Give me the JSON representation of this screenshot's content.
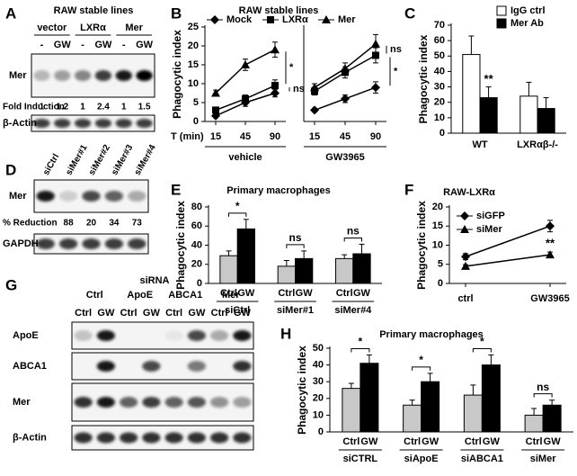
{
  "panel_letters": [
    "A",
    "B",
    "C",
    "D",
    "E",
    "F",
    "G",
    "H"
  ],
  "blot_a": {
    "title": "RAW stable lines",
    "groups": [
      "vector",
      "LXRα",
      "Mer"
    ],
    "lanes": [
      "-",
      "GW",
      "-",
      "GW",
      "-",
      "GW"
    ],
    "rows": [
      "Mer",
      "β-Actin"
    ],
    "fold_label": "Fold Induction",
    "fold": [
      1,
      1.2,
      1,
      2.4,
      1,
      1.5
    ]
  },
  "blot_d": {
    "lanes": [
      "siCtrl",
      "siMer#1",
      "siMer#2",
      "siMer#3",
      "siMer#4"
    ],
    "rows": [
      "Mer",
      "GAPDH"
    ],
    "reduction_label": "% Reduction",
    "reduction": [
      null,
      88,
      20,
      34,
      73
    ]
  },
  "blot_g": {
    "title": "siRNA",
    "groups": [
      "Ctrl",
      "ApoE",
      "ABCA1",
      "Mer"
    ],
    "lanes": [
      "Ctrl",
      "GW",
      "Ctrl",
      "GW",
      "Ctrl",
      "GW",
      "Ctrl",
      "GW"
    ],
    "rows": [
      "ApoE",
      "ABCA1",
      "Mer",
      "β-Actin"
    ]
  },
  "chart_data": [
    {
      "type": "line",
      "title": "RAW stable lines",
      "y_label": "Phagocytic index",
      "x_label": "T (min)",
      "ylim": [
        0,
        25
      ],
      "yticks": [
        0,
        5,
        10,
        15,
        20,
        25
      ],
      "legend_names": [
        "Mock",
        "LXRα",
        "Mer"
      ],
      "markers": [
        "diamond",
        "square",
        "triangle"
      ],
      "color": "#000000",
      "panels": [
        {
          "label": "vehicle",
          "categories": [
            15,
            45,
            90
          ],
          "annotations": [
            "*",
            "ns"
          ],
          "series": [
            {
              "values": [
                1.5,
                5,
                7.5
              ],
              "errors": [
                0.5,
                1,
                1
              ]
            },
            {
              "values": [
                3,
                6,
                9.5
              ],
              "errors": [
                0.5,
                1,
                1.5
              ]
            },
            {
              "values": [
                7.5,
                15,
                19
              ],
              "errors": [
                0.8,
                1.5,
                2
              ]
            }
          ]
        },
        {
          "label": "GW3965",
          "categories": [
            15,
            45,
            90
          ],
          "annotations": [
            "ns",
            "*"
          ],
          "series": [
            {
              "values": [
                3,
                6,
                9
              ],
              "errors": [
                0.5,
                1,
                1.5
              ]
            },
            {
              "values": [
                8,
                13,
                17.5
              ],
              "errors": [
                1,
                1.5,
                2
              ]
            },
            {
              "values": [
                9,
                14,
                20.5
              ],
              "errors": [
                1,
                1.5,
                2.5
              ]
            }
          ]
        }
      ]
    },
    {
      "type": "bar",
      "y_label": "Phagocytic index",
      "ylim": [
        0,
        70
      ],
      "yticks": [
        0,
        10,
        20,
        30,
        40,
        50,
        60,
        70
      ],
      "legend": true,
      "brackets": false,
      "categories": [
        "WT",
        "LXRαβ-/-"
      ],
      "annotations": [
        "**",
        null
      ],
      "series": [
        {
          "name": "IgG ctrl",
          "color": "#ffffff",
          "values": [
            51,
            24
          ],
          "errors": [
            12,
            9
          ]
        },
        {
          "name": "Mer Ab",
          "color": "#000000",
          "values": [
            23,
            16
          ],
          "errors": [
            7,
            7
          ]
        }
      ]
    },
    {
      "type": "bar",
      "title": "Primary macrophages",
      "y_label": "Phagocytic index",
      "ylim": [
        0,
        80
      ],
      "yticks": [
        0,
        20,
        40,
        60,
        80
      ],
      "legend": false,
      "brackets": true,
      "categories": [
        "siCtrl",
        "siMer#1",
        "siMer#4"
      ],
      "annotations": [
        "*",
        "ns",
        "ns"
      ],
      "series": [
        {
          "name": "Ctrl",
          "color": "#c8c8c8",
          "values": [
            29,
            18,
            26
          ],
          "errors": [
            5,
            6,
            4
          ]
        },
        {
          "name": "GW",
          "color": "#000000",
          "values": [
            57,
            26,
            31
          ],
          "errors": [
            10,
            8,
            10
          ]
        }
      ]
    },
    {
      "type": "line",
      "title": "RAW-LXRα",
      "y_label": "Phagocytic index",
      "ylim": [
        0,
        20
      ],
      "yticks": [
        0,
        5,
        10,
        15,
        20
      ],
      "color": "#000000",
      "categories": [
        "ctrl",
        "GW3965"
      ],
      "annotations": [
        null,
        "**"
      ],
      "series": [
        {
          "name": "siGFP",
          "marker": "diamond",
          "values": [
            7,
            15
          ],
          "errors": [
            0.8,
            1.5
          ]
        },
        {
          "name": "siMer",
          "marker": "triangle",
          "values": [
            4.5,
            7.5
          ],
          "errors": [
            0.4,
            0.7
          ]
        }
      ]
    },
    {
      "type": "bar",
      "title": "Primary macrophages",
      "y_label": "Phagocytic index",
      "ylim": [
        0,
        50
      ],
      "yticks": [
        0,
        10,
        20,
        30,
        40,
        50
      ],
      "legend": false,
      "brackets": true,
      "categories": [
        "siCTRL",
        "siApoE",
        "siABCA1",
        "siMer"
      ],
      "annotations": [
        "*",
        "*",
        "*",
        "ns"
      ],
      "series": [
        {
          "name": "Ctrl",
          "color": "#c8c8c8",
          "values": [
            26,
            16,
            22,
            10
          ],
          "errors": [
            3,
            3,
            6,
            4
          ]
        },
        {
          "name": "GW",
          "color": "#000000",
          "values": [
            41,
            30,
            40,
            16
          ],
          "errors": [
            5,
            5,
            6,
            3
          ]
        }
      ]
    }
  ]
}
